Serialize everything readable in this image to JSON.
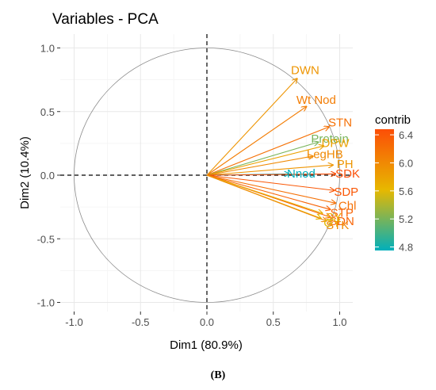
{
  "chart_data": {
    "type": "scatter",
    "subtype": "pca-variable-correlation-circle",
    "title": "Variables - PCA",
    "xlabel": "Dim1 (80.9%)",
    "ylabel": "Dim2 (10.4%)",
    "xlim": [
      -1.1,
      1.1
    ],
    "ylim": [
      -1.1,
      1.1
    ],
    "x_ticks": [
      -1.0,
      -0.5,
      0.0,
      0.5,
      1.0
    ],
    "y_ticks": [
      -1.0,
      -0.5,
      0.0,
      0.5,
      1.0
    ],
    "x_tick_labels": [
      "-1.0",
      "-0.5",
      "0.0",
      "0.5",
      "1.0"
    ],
    "y_tick_labels": [
      "-1.0",
      "-0.5",
      "0.0",
      "0.5",
      "1.0"
    ],
    "grid": true,
    "unit_circle": true,
    "legend": {
      "title": "contrib",
      "position": "right",
      "type": "gradient",
      "min": 4.75,
      "max": 6.48,
      "ticks": [
        6.4,
        6.0,
        5.6,
        5.2,
        4.8
      ],
      "tick_labels": [
        "6.4",
        "6.0",
        "5.6",
        "5.2",
        "4.8"
      ],
      "colors": [
        "#00AFBB",
        "#E7B800",
        "#FC4E07"
      ]
    },
    "variables": [
      {
        "name": "DWN",
        "x": 0.68,
        "y": 0.76,
        "contrib": 5.9
      },
      {
        "name": "Wt Nod",
        "x": 0.75,
        "y": 0.54,
        "contrib": 6.1
      },
      {
        "name": "STN",
        "x": 0.92,
        "y": 0.38,
        "contrib": 6.2
      },
      {
        "name": "Protein",
        "x": 0.84,
        "y": 0.26,
        "contrib": 5.2
      },
      {
        "name": "DPW",
        "x": 0.88,
        "y": 0.23,
        "contrib": 5.8
      },
      {
        "name": "LegHB",
        "x": 0.8,
        "y": 0.15,
        "contrib": 6.0
      },
      {
        "name": "PH",
        "x": 0.95,
        "y": 0.08,
        "contrib": 5.9
      },
      {
        "name": "Nnod",
        "x": 0.62,
        "y": 0.01,
        "contrib": 4.75
      },
      {
        "name": "SDK",
        "x": 0.97,
        "y": 0.01,
        "contrib": 6.48
      },
      {
        "name": "SDP",
        "x": 0.96,
        "y": -0.12,
        "contrib": 6.4
      },
      {
        "name": "Chl",
        "x": 0.97,
        "y": -0.22,
        "contrib": 6.2
      },
      {
        "name": "STP",
        "x": 0.93,
        "y": -0.27,
        "contrib": 6.3
      },
      {
        "name": "SDN",
        "x": 0.93,
        "y": -0.33,
        "contrib": 6.3
      },
      {
        "name": "SY",
        "x": 0.87,
        "y": -0.3,
        "contrib": 5.7
      },
      {
        "name": "GY",
        "x": 0.86,
        "y": -0.34,
        "contrib": 5.6
      },
      {
        "name": "STK",
        "x": 0.9,
        "y": -0.36,
        "contrib": 6.0
      }
    ]
  },
  "caption": "(B)"
}
